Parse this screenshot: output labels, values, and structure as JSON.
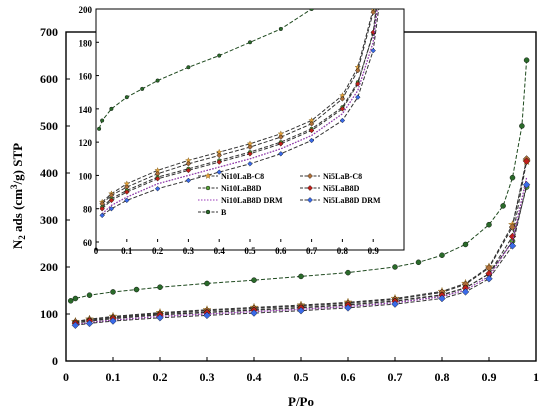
{
  "chart_data": [
    {
      "type": "line",
      "xlabel": "P/Po",
      "ylabel_prefix": "N",
      "ylabel_sub": "2",
      "ylabel_mid": " ads (cm",
      "ylabel_sup": "3",
      "ylabel_suffix": "/g) STP",
      "xlim": [
        0,
        1
      ],
      "ylim": [
        0,
        700
      ],
      "xticks": [
        "0",
        "0.1",
        "0.2",
        "0.3",
        "0.4",
        "0.5",
        "0.6",
        "0.7",
        "0.8",
        "0.9",
        "1"
      ],
      "yticks": [
        "0",
        "100",
        "200",
        "300",
        "400",
        "500",
        "600",
        "700"
      ],
      "grid": false,
      "series": [
        {
          "name": "Ni10LaB-C8",
          "color": "#e8a33a",
          "marker": "star",
          "x": [
            0.02,
            0.05,
            0.1,
            0.2,
            0.3,
            0.4,
            0.5,
            0.6,
            0.7,
            0.8,
            0.85,
            0.9,
            0.95,
            0.98
          ],
          "y": [
            84,
            89,
            95,
            103,
            109,
            114,
            119,
            125,
            133,
            148,
            165,
            200,
            290,
            425
          ]
        },
        {
          "name": "Ni5LaB-C8",
          "color": "#b0703a",
          "marker": "diamond",
          "x": [
            0.02,
            0.05,
            0.1,
            0.2,
            0.3,
            0.4,
            0.5,
            0.6,
            0.7,
            0.8,
            0.85,
            0.9,
            0.95,
            0.98
          ],
          "y": [
            83,
            88,
            93,
            101,
            107,
            112,
            117,
            123,
            131,
            146,
            163,
            198,
            285,
            430
          ]
        },
        {
          "name": "Ni10LaB8D",
          "color": "#5aa33a",
          "marker": "circle",
          "x": [
            0.02,
            0.05,
            0.1,
            0.2,
            0.3,
            0.4,
            0.5,
            0.6,
            0.7,
            0.8,
            0.85,
            0.9,
            0.95,
            0.98
          ],
          "y": [
            81,
            86,
            91,
            99,
            104,
            109,
            114,
            120,
            128,
            141,
            156,
            185,
            255,
            370
          ]
        },
        {
          "name": "Ni5LaB8D",
          "color": "#c0201a",
          "marker": "diamond",
          "x": [
            0.02,
            0.05,
            0.1,
            0.2,
            0.3,
            0.4,
            0.5,
            0.6,
            0.7,
            0.8,
            0.85,
            0.9,
            0.95,
            0.98
          ],
          "y": [
            80,
            85,
            90,
            98,
            103,
            108,
            113,
            119,
            127,
            140,
            155,
            186,
            265,
            425
          ]
        },
        {
          "name": "Ni10LaB8D DRM",
          "color": "#9a3ab8",
          "marker": "none",
          "x": [
            0.02,
            0.05,
            0.1,
            0.2,
            0.3,
            0.4,
            0.5,
            0.6,
            0.7,
            0.8,
            0.85,
            0.9,
            0.95,
            0.98
          ],
          "y": [
            77,
            82,
            87,
            95,
            100,
            105,
            110,
            116,
            124,
            137,
            151,
            180,
            255,
            390
          ]
        },
        {
          "name": "Ni5LaB8D DRM",
          "color": "#3a6ae8",
          "marker": "diamond",
          "x": [
            0.02,
            0.05,
            0.1,
            0.2,
            0.3,
            0.4,
            0.5,
            0.6,
            0.7,
            0.8,
            0.85,
            0.9,
            0.95,
            0.98
          ],
          "y": [
            76,
            80,
            85,
            92,
            97,
            102,
            107,
            113,
            121,
            133,
            147,
            175,
            245,
            375
          ]
        },
        {
          "name": "B",
          "color": "#2a6a2a",
          "marker": "circle",
          "x": [
            0.01,
            0.02,
            0.05,
            0.1,
            0.15,
            0.2,
            0.3,
            0.4,
            0.5,
            0.6,
            0.7,
            0.75,
            0.8,
            0.85,
            0.9,
            0.93,
            0.95,
            0.97,
            0.98
          ],
          "y": [
            128,
            133,
            140,
            147,
            152,
            157,
            165,
            172,
            180,
            188,
            200,
            210,
            225,
            248,
            290,
            330,
            390,
            500,
            640
          ]
        }
      ]
    },
    {
      "type": "line",
      "xlim": [
        0,
        1
      ],
      "ylim": [
        60,
        200
      ],
      "xticks": [
        "0",
        "0.1",
        "0.2",
        "0.3",
        "0.4",
        "0.5",
        "0.6",
        "0.7",
        "0.8",
        "0.9"
      ],
      "yticks": [
        "60",
        "80",
        "100",
        "120",
        "140",
        "160",
        "180",
        "200"
      ],
      "legend": [
        "Ni10LaB-C8",
        "Ni5LaB-C8",
        "Ni10LaB8D",
        "Ni5LaB8D",
        "Ni10LaB8D DRM",
        "Ni5LaB8D DRM",
        "B"
      ]
    }
  ]
}
